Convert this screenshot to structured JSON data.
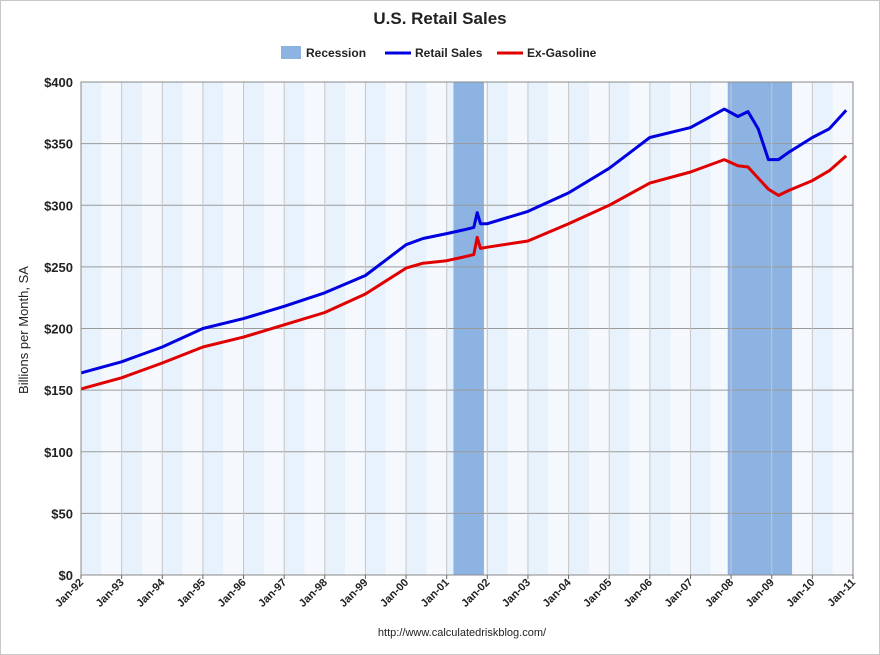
{
  "chart_data": {
    "type": "line",
    "title": "U.S. Retail Sales",
    "ylabel": "Billions per Month, SA",
    "xlabel": "",
    "ylim": [
      0,
      400
    ],
    "y_ticks": [
      "$0",
      "$50",
      "$100",
      "$150",
      "$200",
      "$250",
      "$300",
      "$350",
      "$400"
    ],
    "x_ticks": [
      "Jan-92",
      "Jan-93",
      "Jan-94",
      "Jan-95",
      "Jan-96",
      "Jan-97",
      "Jan-98",
      "Jan-99",
      "Jan-00",
      "Jan-01",
      "Jan-02",
      "Jan-03",
      "Jan-04",
      "Jan-05",
      "Jan-06",
      "Jan-07",
      "Jan-08",
      "Jan-09",
      "Jan-10",
      "Jan-11"
    ],
    "grid": true,
    "legend_position": "top-center",
    "legend": [
      {
        "name": "Recession",
        "type": "band",
        "color": "#8db3e2"
      },
      {
        "name": "Retail Sales",
        "type": "line",
        "color": "#0000e0"
      },
      {
        "name": "Ex-Gasoline",
        "type": "line",
        "color": "#e00000"
      }
    ],
    "recessions": [
      {
        "start": "2001-03",
        "end": "2001-11"
      },
      {
        "start": "2007-12",
        "end": "2009-06"
      }
    ],
    "series": [
      {
        "name": "Retail Sales",
        "color": "#0000e0",
        "points": [
          [
            "1992-01",
            164
          ],
          [
            "1993-01",
            173
          ],
          [
            "1994-01",
            185
          ],
          [
            "1995-01",
            200
          ],
          [
            "1996-01",
            208
          ],
          [
            "1997-01",
            218
          ],
          [
            "1998-01",
            229
          ],
          [
            "1999-01",
            243
          ],
          [
            "2000-01",
            268
          ],
          [
            "2000-06",
            273
          ],
          [
            "2001-01",
            277
          ],
          [
            "2001-06",
            280
          ],
          [
            "2001-09",
            282
          ],
          [
            "2001-10",
            294
          ],
          [
            "2001-11",
            285
          ],
          [
            "2002-01",
            285
          ],
          [
            "2003-01",
            295
          ],
          [
            "2004-01",
            310
          ],
          [
            "2005-01",
            330
          ],
          [
            "2006-01",
            355
          ],
          [
            "2007-01",
            363
          ],
          [
            "2007-11",
            378
          ],
          [
            "2008-03",
            372
          ],
          [
            "2008-06",
            376
          ],
          [
            "2008-09",
            362
          ],
          [
            "2008-12",
            337
          ],
          [
            "2009-03",
            337
          ],
          [
            "2009-06",
            343
          ],
          [
            "2010-01",
            355
          ],
          [
            "2010-06",
            362
          ],
          [
            "2010-11",
            377
          ]
        ]
      },
      {
        "name": "Ex-Gasoline",
        "color": "#e00000",
        "points": [
          [
            "1992-01",
            151
          ],
          [
            "1993-01",
            160
          ],
          [
            "1994-01",
            172
          ],
          [
            "1995-01",
            185
          ],
          [
            "1996-01",
            193
          ],
          [
            "1997-01",
            203
          ],
          [
            "1998-01",
            213
          ],
          [
            "1999-01",
            228
          ],
          [
            "2000-01",
            249
          ],
          [
            "2000-06",
            253
          ],
          [
            "2001-01",
            255
          ],
          [
            "2001-06",
            258
          ],
          [
            "2001-09",
            260
          ],
          [
            "2001-10",
            274
          ],
          [
            "2001-11",
            265
          ],
          [
            "2002-01",
            266
          ],
          [
            "2003-01",
            271
          ],
          [
            "2004-01",
            285
          ],
          [
            "2005-01",
            300
          ],
          [
            "2006-01",
            318
          ],
          [
            "2007-01",
            327
          ],
          [
            "2007-11",
            337
          ],
          [
            "2008-03",
            332
          ],
          [
            "2008-06",
            331
          ],
          [
            "2008-09",
            322
          ],
          [
            "2008-12",
            313
          ],
          [
            "2009-03",
            308
          ],
          [
            "2009-06",
            312
          ],
          [
            "2010-01",
            320
          ],
          [
            "2010-06",
            328
          ],
          [
            "2010-11",
            340
          ]
        ]
      }
    ]
  },
  "footer": {
    "source": "http://www.calculatedriskblog.com/"
  }
}
